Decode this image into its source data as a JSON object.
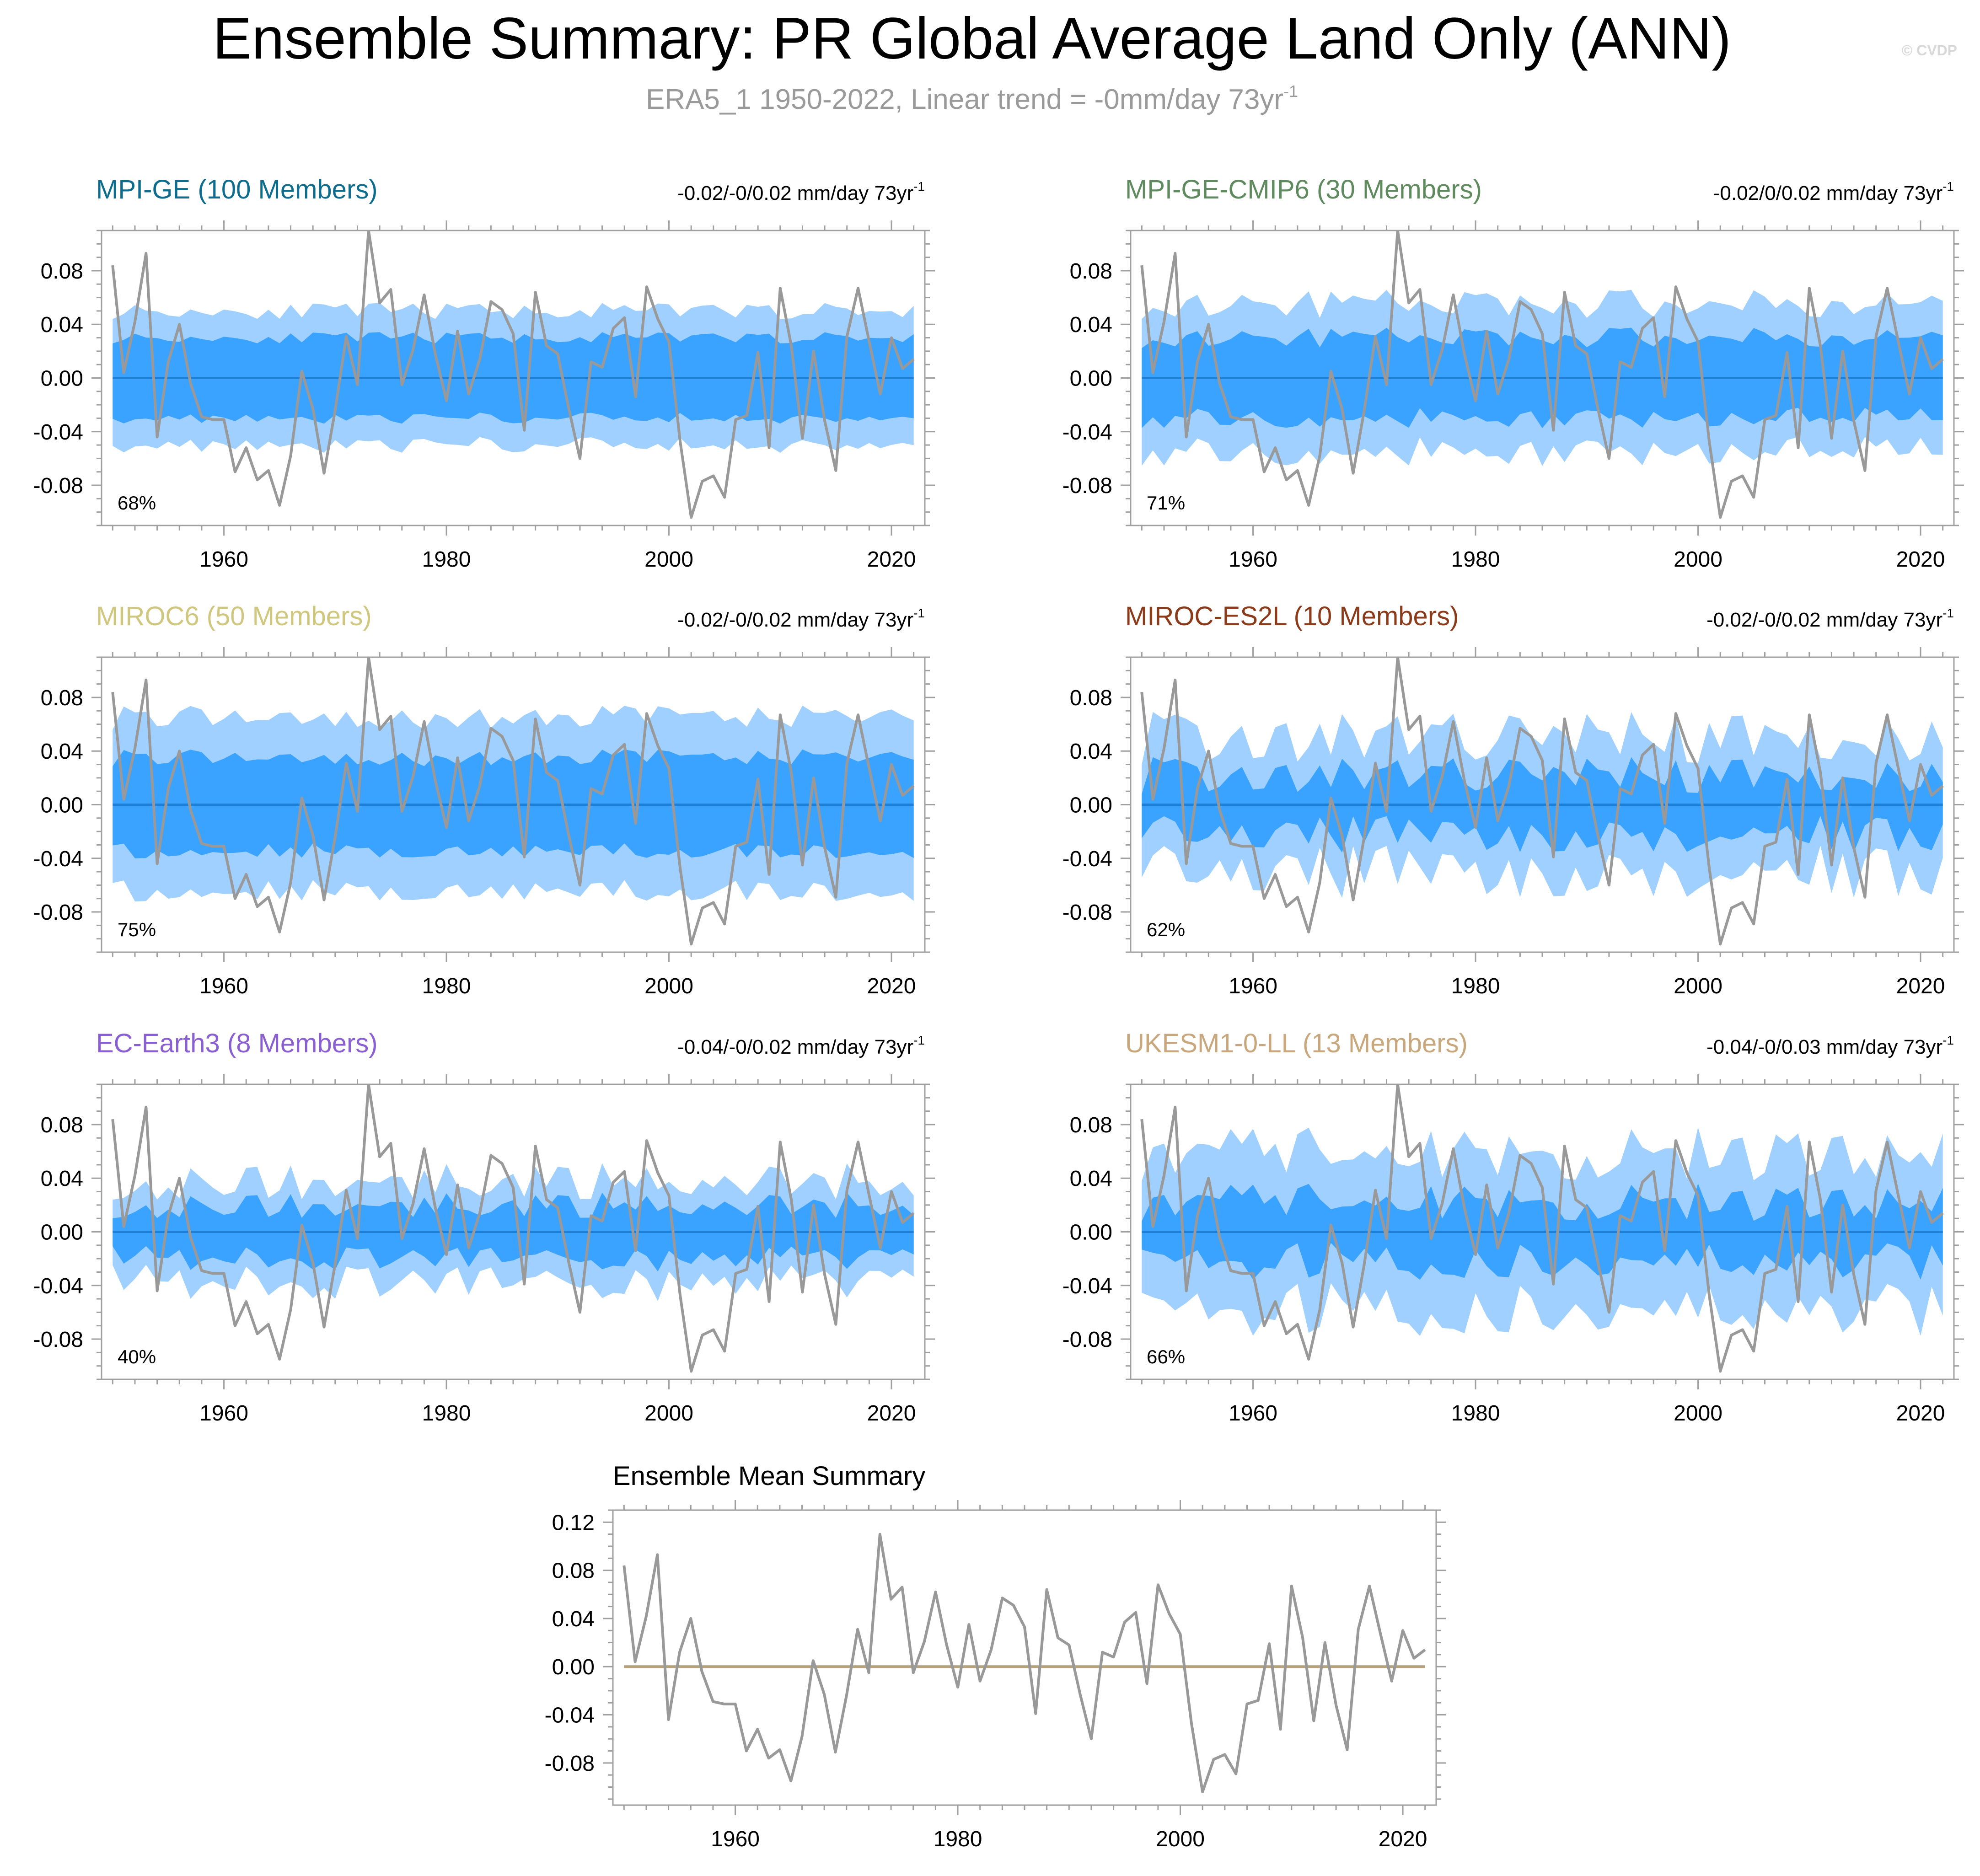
{
  "header": {
    "title": "Ensemble Summary: PR Global Average Land Only (ANN)",
    "subtitle_main": "ERA5_1 1950-2022, Linear trend = -0mm/day 73yr",
    "subtitle_sup": "-1",
    "copyright": "© CVDP"
  },
  "colors": {
    "band_outer": "#9fd0ff",
    "band_inner": "#3aa2ff",
    "ens_mean_line": "#1d7fd6",
    "obs_line": "#999999",
    "summary_zero_line": "#b8a27c",
    "axis": "#a0a0a0"
  },
  "chart_data": [
    {
      "type": "area",
      "panel": "MPI-GE",
      "title": "MPI-GE (100 Members)",
      "title_color": "#0e6d8e",
      "trend_label": "-0.02/-0/0.02 mm/day 73yr",
      "trend_sup": "-1",
      "percent_label": "68%",
      "xlim": [
        1949,
        2023
      ],
      "ylim": [
        -0.11,
        0.11
      ],
      "xticks": [
        1960,
        1980,
        2000,
        2020
      ],
      "yticks": [
        0.08,
        0.04,
        0.0,
        -0.04,
        -0.08
      ],
      "ytick_labels": [
        "0.08",
        "0.04",
        "0.00",
        "-0.04",
        "-0.08"
      ],
      "band_outer_half": 0.05,
      "band_inner_half": 0.03,
      "band_jitter": 0.006,
      "seed": 11
    },
    {
      "type": "area",
      "panel": "MPI-GE-CMIP6",
      "title": "MPI-GE-CMIP6 (30 Members)",
      "title_color": "#5e8a5e",
      "trend_label": "-0.02/0/0.02 mm/day 73yr",
      "trend_sup": "-1",
      "percent_label": "71%",
      "xlim": [
        1949,
        2023
      ],
      "ylim": [
        -0.11,
        0.11
      ],
      "xticks": [
        1960,
        1980,
        2000,
        2020
      ],
      "yticks": [
        0.08,
        0.04,
        0.0,
        -0.04,
        -0.08
      ],
      "ytick_labels": [
        "0.08",
        "0.04",
        "0.00",
        "-0.04",
        "-0.08"
      ],
      "band_outer_half": 0.055,
      "band_inner_half": 0.03,
      "band_jitter": 0.011,
      "seed": 23
    },
    {
      "type": "area",
      "panel": "MIROC6",
      "title": "MIROC6 (50 Members)",
      "title_color": "#cfc77d",
      "trend_label": "-0.02/-0/0.02 mm/day 73yr",
      "trend_sup": "-1",
      "percent_label": "75%",
      "xlim": [
        1949,
        2023
      ],
      "ylim": [
        -0.11,
        0.11
      ],
      "xticks": [
        1960,
        1980,
        2000,
        2020
      ],
      "yticks": [
        0.08,
        0.04,
        0.0,
        -0.04,
        -0.08
      ],
      "ytick_labels": [
        "0.08",
        "0.04",
        "0.00",
        "-0.04",
        "-0.08"
      ],
      "band_outer_half": 0.065,
      "band_inner_half": 0.035,
      "band_jitter": 0.009,
      "seed": 37
    },
    {
      "type": "area",
      "panel": "MIROC-ES2L",
      "title": "MIROC-ES2L (10 Members)",
      "title_color": "#8b3a1a",
      "trend_label": "-0.02/-0/0.02 mm/day 73yr",
      "trend_sup": "-1",
      "percent_label": "62%",
      "xlim": [
        1949,
        2023
      ],
      "ylim": [
        -0.11,
        0.11
      ],
      "xticks": [
        1960,
        1980,
        2000,
        2020
      ],
      "yticks": [
        0.08,
        0.04,
        0.0,
        -0.04,
        -0.08
      ],
      "ytick_labels": [
        "0.08",
        "0.04",
        "0.00",
        "-0.04",
        "-0.08"
      ],
      "band_outer_half": 0.05,
      "band_inner_half": 0.022,
      "band_jitter": 0.02,
      "seed": 41
    },
    {
      "type": "area",
      "panel": "EC-Earth3",
      "title": "EC-Earth3 (8 Members)",
      "title_color": "#8a5fd2",
      "trend_label": "-0.04/-0/0.02 mm/day 73yr",
      "trend_sup": "-1",
      "percent_label": "40%",
      "xlim": [
        1949,
        2023
      ],
      "ylim": [
        -0.11,
        0.11
      ],
      "xticks": [
        1960,
        1980,
        2000,
        2020
      ],
      "yticks": [
        0.08,
        0.04,
        0.0,
        -0.04,
        -0.08
      ],
      "ytick_labels": [
        "0.08",
        "0.04",
        "0.00",
        "-0.04",
        "-0.08"
      ],
      "band_outer_half": 0.038,
      "band_inner_half": 0.02,
      "band_jitter": 0.014,
      "seed": 53
    },
    {
      "type": "area",
      "panel": "UKESM1-0-LL",
      "title": "UKESM1-0-LL (13 Members)",
      "title_color": "#c9a77c",
      "trend_label": "-0.04/-0/0.03 mm/day 73yr",
      "trend_sup": "-1",
      "percent_label": "66%",
      "xlim": [
        1949,
        2023
      ],
      "ylim": [
        -0.11,
        0.11
      ],
      "xticks": [
        1960,
        1980,
        2000,
        2020
      ],
      "yticks": [
        0.08,
        0.04,
        0.0,
        -0.04,
        -0.08
      ],
      "ytick_labels": [
        "0.08",
        "0.04",
        "0.00",
        "-0.04",
        "-0.08"
      ],
      "band_outer_half": 0.058,
      "band_inner_half": 0.022,
      "band_jitter": 0.02,
      "seed": 67
    },
    {
      "type": "line",
      "panel": "Ensemble Mean Summary",
      "title": "Ensemble Mean Summary",
      "xlim": [
        1949,
        2023
      ],
      "ylim": [
        -0.115,
        0.13
      ],
      "xticks": [
        1960,
        1980,
        2000,
        2020
      ],
      "yticks": [
        0.12,
        0.08,
        0.04,
        0.0,
        -0.04,
        -0.08
      ],
      "ytick_labels": [
        "0.12",
        "0.08",
        "0.04",
        "0.00",
        "-0.04",
        "-0.08"
      ]
    }
  ],
  "observations": {
    "name": "ERA5_1",
    "x": [
      1950,
      1951,
      1952,
      1953,
      1954,
      1955,
      1956,
      1957,
      1958,
      1959,
      1960,
      1961,
      1962,
      1963,
      1964,
      1965,
      1966,
      1967,
      1968,
      1969,
      1970,
      1971,
      1972,
      1973,
      1974,
      1975,
      1976,
      1977,
      1978,
      1979,
      1980,
      1981,
      1982,
      1983,
      1984,
      1985,
      1986,
      1987,
      1988,
      1989,
      1990,
      1991,
      1992,
      1993,
      1994,
      1995,
      1996,
      1997,
      1998,
      1999,
      2000,
      2001,
      2002,
      2003,
      2004,
      2005,
      2006,
      2007,
      2008,
      2009,
      2010,
      2011,
      2012,
      2013,
      2014,
      2015,
      2016,
      2017,
      2018,
      2019,
      2020,
      2021,
      2022
    ],
    "y": [
      0.084,
      0.004,
      0.042,
      0.093,
      -0.044,
      0.012,
      0.04,
      -0.004,
      -0.029,
      -0.031,
      -0.031,
      -0.07,
      -0.052,
      -0.076,
      -0.069,
      -0.095,
      -0.058,
      0.005,
      -0.023,
      -0.071,
      -0.024,
      0.031,
      -0.005,
      0.11,
      0.056,
      0.066,
      -0.005,
      0.021,
      0.062,
      0.018,
      -0.017,
      0.035,
      -0.012,
      0.014,
      0.057,
      0.051,
      0.033,
      -0.039,
      0.064,
      0.024,
      0.018,
      -0.023,
      -0.06,
      0.012,
      0.008,
      0.037,
      0.045,
      -0.014,
      0.068,
      0.044,
      0.027,
      -0.047,
      -0.104,
      -0.077,
      -0.073,
      -0.089,
      -0.031,
      -0.028,
      0.019,
      -0.052,
      0.067,
      0.024,
      -0.045,
      0.02,
      -0.032,
      -0.069,
      0.031,
      0.067,
      0.027,
      -0.012,
      0.03,
      0.007,
      0.014
    ]
  }
}
